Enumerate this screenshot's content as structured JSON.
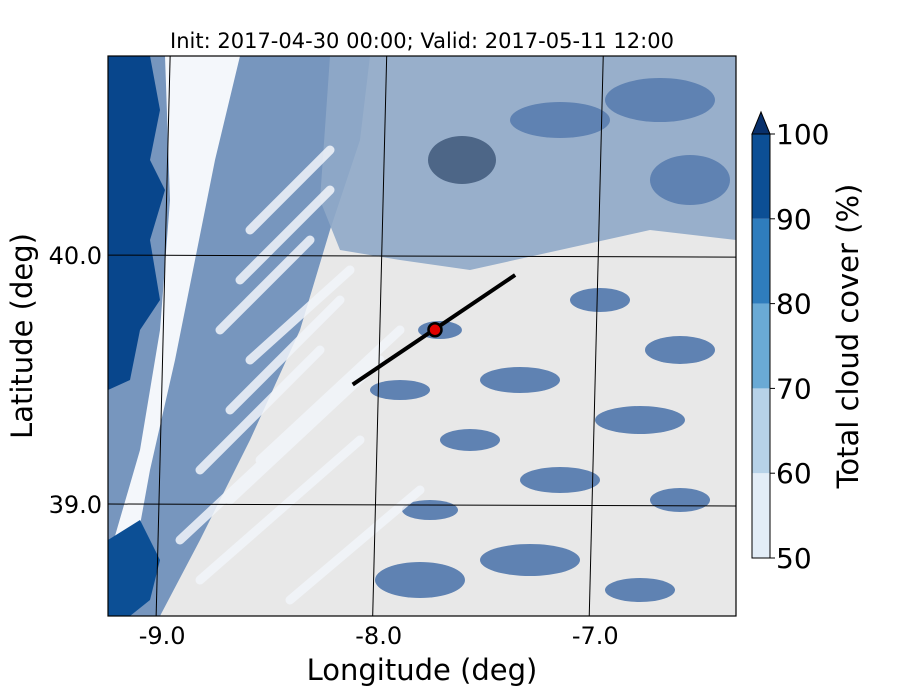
{
  "chart_data": {
    "type": "heatmap",
    "title": "Init: 2017-04-30 00:00; Valid: 2017-05-11 12:00",
    "xlabel": "Longitude (deg)",
    "ylabel": "Latitude (deg)",
    "xlim": [
      -9.25,
      -6.35
    ],
    "ylim": [
      38.55,
      40.8
    ],
    "x_ticks": [
      -9.0,
      -8.0,
      -7.0
    ],
    "x_tick_labels": [
      "-9.0",
      "-8.0",
      "-7.0"
    ],
    "y_ticks": [
      39.0,
      40.0
    ],
    "y_tick_labels": [
      "39.0",
      "40.0"
    ],
    "grid": true,
    "colorbar": {
      "label": "Total cloud cover (%)",
      "levels": [
        50,
        60,
        70,
        80,
        90,
        100
      ],
      "tick_labels": [
        "50",
        "60",
        "70",
        "80",
        "90",
        "100"
      ],
      "extend": "max",
      "colors": [
        "#e3edf7",
        "#b7d2e8",
        "#6aaad5",
        "#2f7dbd",
        "#0c4f95",
        "#08306b"
      ]
    },
    "cross_section": {
      "start": {
        "lon": -8.12,
        "lat": 39.48
      },
      "end": {
        "lon": -7.37,
        "lat": 39.92
      }
    },
    "point": {
      "lon": -7.74,
      "lat": 39.7,
      "color": "#e00000"
    },
    "map_colors": {
      "background": "#e8e8e8",
      "land": "#7796be",
      "ocean_high": "#08468c"
    }
  }
}
